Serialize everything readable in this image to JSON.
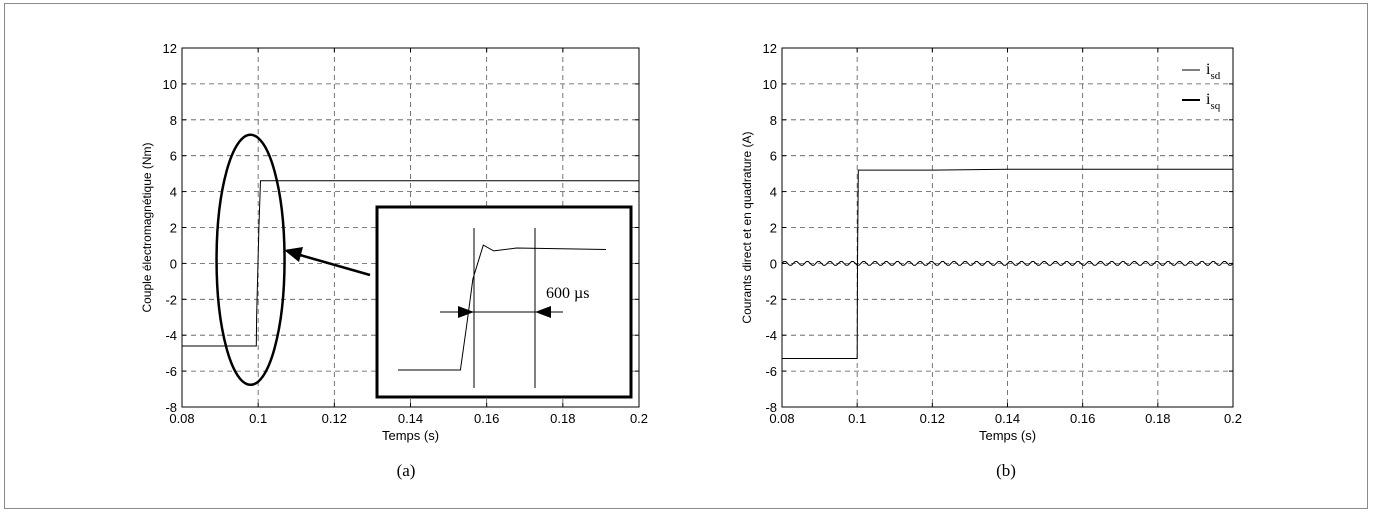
{
  "colors": {
    "line": "#000000",
    "grid": "#555555",
    "frame": "#8a8a8a",
    "bg": "#ffffff"
  },
  "chart_data": [
    {
      "type": "line",
      "caption": "(a)",
      "xlabel": "Temps (s)",
      "ylabel": "Couple électromagnétique (Nm)",
      "xlim": [
        0.08,
        0.2
      ],
      "ylim": [
        -8,
        12
      ],
      "xticks": [
        0.08,
        0.1,
        0.12,
        0.14,
        0.16,
        0.18,
        0.2
      ],
      "xticklabels": [
        "0.08",
        "0.1",
        "0.12",
        "0.14",
        "0.16",
        "0.18",
        "0.2"
      ],
      "yticks": [
        -8,
        -6,
        -4,
        -2,
        0,
        2,
        4,
        6,
        8,
        10,
        12
      ],
      "yticklabels": [
        "-8",
        "-6",
        "-4",
        "-2",
        "0",
        "2",
        "4",
        "6",
        "8",
        "10",
        "12"
      ],
      "grid": true,
      "series": [
        {
          "x": [
            0.08,
            0.09,
            0.0995,
            0.0996,
            0.1002,
            0.1006,
            0.105,
            0.12,
            0.14,
            0.16,
            0.18,
            0.2
          ],
          "values": [
            -4.6,
            -4.6,
            -4.6,
            -3.0,
            2.0,
            4.6,
            4.6,
            4.6,
            4.6,
            4.6,
            4.6,
            4.6
          ]
        }
      ],
      "annotations": {
        "inset_label": "600 µs",
        "inset_curve": [
          [
            0.0,
            0.0
          ],
          [
            0.3,
            0.0
          ],
          [
            0.33,
            0.3
          ],
          [
            0.36,
            0.62
          ],
          [
            0.41,
            0.85
          ],
          [
            0.46,
            0.81
          ],
          [
            0.57,
            0.83
          ],
          [
            1.0,
            0.82
          ]
        ]
      }
    },
    {
      "type": "line",
      "caption": "(b)",
      "xlabel": "Temps (s)",
      "ylabel": "Courants direct et en quadrature (A)",
      "xlim": [
        0.08,
        0.2
      ],
      "ylim": [
        -8,
        12
      ],
      "xticks": [
        0.08,
        0.1,
        0.12,
        0.14,
        0.16,
        0.18,
        0.2
      ],
      "xticklabels": [
        "0.08",
        "0.1",
        "0.12",
        "0.14",
        "0.16",
        "0.18",
        "0.2"
      ],
      "yticks": [
        -8,
        -6,
        -4,
        -2,
        0,
        2,
        4,
        6,
        8,
        10,
        12
      ],
      "yticklabels": [
        "-8",
        "-6",
        "-4",
        "-2",
        "0",
        "2",
        "4",
        "6",
        "8",
        "10",
        "12"
      ],
      "grid": true,
      "legend": {
        "position": "top-right",
        "items": [
          {
            "main": "i",
            "sub": "sd"
          },
          {
            "main": "i",
            "sub": "sq"
          }
        ]
      },
      "series": [
        {
          "name": "isd",
          "x": [
            0.08,
            0.1,
            0.1001,
            0.1003,
            0.12,
            0.14,
            0.16,
            0.18,
            0.2
          ],
          "values": [
            -5.3,
            -5.3,
            0,
            5.2,
            5.2,
            5.25,
            5.25,
            5.25,
            5.25
          ]
        },
        {
          "name": "isq",
          "x": [
            0.08,
            0.1,
            0.12,
            0.14,
            0.16,
            0.18,
            0.2
          ],
          "values": [
            0,
            0,
            0,
            0,
            0,
            0,
            0
          ]
        }
      ]
    }
  ]
}
